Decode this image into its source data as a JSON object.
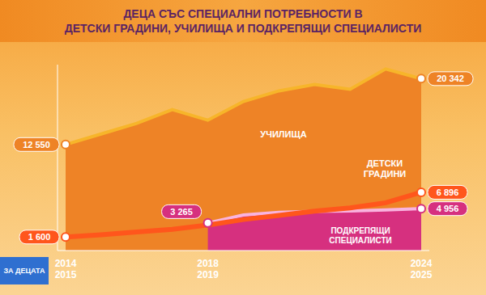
{
  "chart_data": {
    "type": "area",
    "title": "ДЕЦА СЪС СПЕЦИАЛНИ ПОТРЕБНОСТИ В\nДЕТСКИ ГРАДИНИ, УЧИЛИЩА И ПОДКРЕПЯЩИ СПЕЦИАЛИСТИ",
    "categories": [
      "2014\n2015",
      null,
      null,
      null,
      "2018\n2019",
      null,
      null,
      null,
      null,
      null,
      "2024\n2025"
    ],
    "series": [
      {
        "name": "УЧИЛИЩА",
        "type": "area",
        "color": "#ee8326",
        "values": [
          12550,
          13800,
          15050,
          16680,
          15430,
          17640,
          18900,
          19660,
          19080,
          21490,
          20342
        ],
        "value_labels": [
          "12 550",
          null,
          null,
          null,
          null,
          null,
          null,
          null,
          null,
          null,
          "20 342"
        ]
      },
      {
        "name": "ДЕТСКИ ГРАДИНИ",
        "type": "line",
        "color": "#ff561c",
        "values": [
          1600,
          1860,
          2190,
          2520,
          3010,
          3670,
          4170,
          4660,
          5050,
          5650,
          6896
        ],
        "value_labels": [
          "1 600",
          null,
          null,
          null,
          null,
          null,
          null,
          null,
          null,
          null,
          "6 896"
        ]
      },
      {
        "name": "ПОДКРЕПЯЩИ СПЕЦИАЛИСТИ",
        "type": "area",
        "color": "#d6307f",
        "values": [
          null,
          null,
          null,
          null,
          3265,
          4200,
          4520,
          4630,
          4680,
          4810,
          4956
        ],
        "value_labels": [
          null,
          null,
          null,
          null,
          "3 265",
          null,
          null,
          null,
          null,
          null,
          "4 956"
        ]
      }
    ],
    "ylim": [
      0,
      22000
    ],
    "tick_labels": "x",
    "data_labels": true,
    "grid": false,
    "annotations": [
      "ЗА ДЕЦАТА"
    ]
  }
}
